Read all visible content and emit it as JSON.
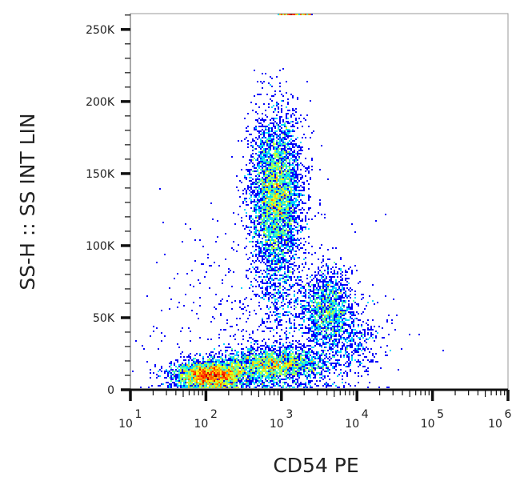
{
  "chart_data": {
    "type": "scatter",
    "subtype": "density-dot-plot",
    "xlabel": "CD54 PE",
    "ylabel": "SS-H :: SS INT LIN",
    "xscale": "log",
    "xlim": [
      10,
      1000000
    ],
    "ylim": [
      0,
      261000
    ],
    "x_ticks": [
      {
        "base": "10",
        "exp": "1",
        "value": 10
      },
      {
        "base": "10",
        "exp": "2",
        "value": 100
      },
      {
        "base": "10",
        "exp": "3",
        "value": 1000
      },
      {
        "base": "10",
        "exp": "4",
        "value": 10000
      },
      {
        "base": "10",
        "exp": "5",
        "value": 100000
      },
      {
        "base": "10",
        "exp": "6",
        "value": 1000000
      }
    ],
    "y_ticks": [
      {
        "label": "0",
        "value": 0
      },
      {
        "label": "50K",
        "value": 50000
      },
      {
        "label": "100K",
        "value": 100000
      },
      {
        "label": "150K",
        "value": 150000
      },
      {
        "label": "200K",
        "value": 200000
      },
      {
        "label": "250K",
        "value": 250000
      }
    ],
    "colormap": "jet (blue = low density, red = high density)",
    "grid": false,
    "populations": [
      {
        "x_center": 112,
        "y_center": 10000,
        "log_x_sd": 0.25,
        "y_sd": 5000,
        "events": 3000
      },
      {
        "x_center": 800,
        "y_center": 17000,
        "log_x_sd": 0.35,
        "y_sd": 6000,
        "events": 2500
      },
      {
        "x_center": 850,
        "y_center": 135000,
        "log_x_sd": 0.17,
        "y_sd": 28000,
        "events": 4500
      },
      {
        "x_center": 4000,
        "y_center": 55000,
        "log_x_sd": 0.18,
        "y_sd": 14000,
        "events": 1500
      },
      {
        "x_center": 8000,
        "y_center": 35000,
        "log_x_sd": 0.25,
        "y_sd": 12000,
        "events": 400
      },
      {
        "x_center": 900,
        "y_center": 70000,
        "log_x_sd": 0.15,
        "y_sd": 25000,
        "events": 300
      },
      {
        "x_center": 630,
        "y_center": 40000,
        "log_x_sd": 0.7,
        "y_sd": 40000,
        "events": 700
      }
    ],
    "saturated_events": {
      "x_range": [
        900,
        2500
      ],
      "y": 261000,
      "events": 150
    }
  }
}
